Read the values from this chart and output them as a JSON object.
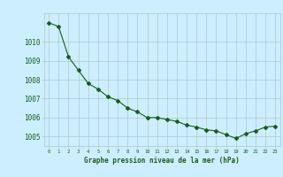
{
  "x": [
    0,
    1,
    2,
    3,
    4,
    5,
    6,
    7,
    8,
    9,
    10,
    11,
    12,
    13,
    14,
    15,
    16,
    17,
    18,
    19,
    20,
    21,
    22,
    23
  ],
  "y": [
    1011.0,
    1010.8,
    1009.2,
    1008.5,
    1007.8,
    1007.5,
    1007.1,
    1006.9,
    1006.5,
    1006.3,
    1006.0,
    1006.0,
    1005.9,
    1005.8,
    1005.6,
    1005.5,
    1005.35,
    1005.3,
    1005.1,
    1004.9,
    1005.15,
    1005.3,
    1005.5,
    1005.55
  ],
  "line_color": "#1a5c1a",
  "marker": "D",
  "marker_size": 2.0,
  "bg_color": "#cceeff",
  "grid_color": "#b0c8c8",
  "xlabel": "Graphe pression niveau de la mer (hPa)",
  "xlabel_color": "#1a5c1a",
  "tick_color": "#1a5c1a",
  "ylim": [
    1004.5,
    1011.5
  ],
  "yticks": [
    1005,
    1006,
    1007,
    1008,
    1009,
    1010
  ],
  "xticks": [
    0,
    1,
    2,
    3,
    4,
    5,
    6,
    7,
    8,
    9,
    10,
    11,
    12,
    13,
    14,
    15,
    16,
    17,
    18,
    19,
    20,
    21,
    22,
    23
  ],
  "xtick_labels": [
    "0",
    "1",
    "2",
    "3",
    "4",
    "5",
    "6",
    "7",
    "8",
    "9",
    "10",
    "11",
    "12",
    "13",
    "14",
    "15",
    "16",
    "17",
    "18",
    "19",
    "20",
    "21",
    "22",
    "23"
  ]
}
